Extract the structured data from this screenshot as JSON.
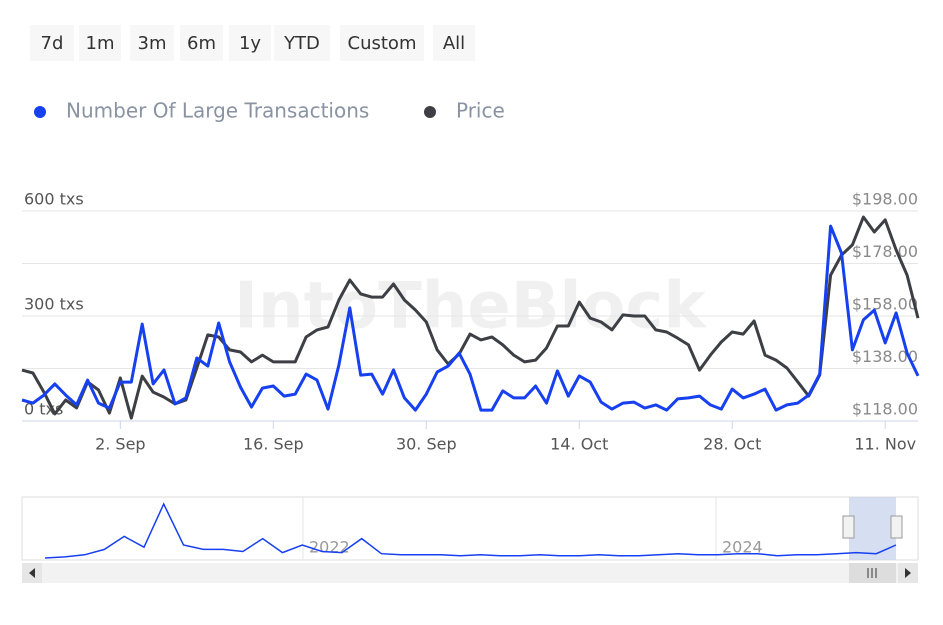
{
  "range_buttons": [
    "7d",
    "1m",
    "3m",
    "6m",
    "1y",
    "YTD",
    "Custom",
    "All"
  ],
  "chart_data": {
    "type": "line",
    "watermark": "IntoTheBlock",
    "categories": [
      null,
      null,
      null,
      null,
      null,
      null,
      null,
      null,
      null,
      "2. Sep",
      null,
      null,
      null,
      null,
      null,
      null,
      null,
      null,
      null,
      null,
      null,
      null,
      null,
      "16. Sep",
      null,
      null,
      null,
      null,
      null,
      null,
      null,
      null,
      null,
      null,
      null,
      null,
      null,
      "30. Sep",
      null,
      null,
      null,
      null,
      null,
      null,
      null,
      null,
      null,
      null,
      null,
      null,
      null,
      "14. Oct",
      null,
      null,
      null,
      null,
      null,
      null,
      null,
      null,
      null,
      null,
      null,
      null,
      null,
      "28. Oct",
      null,
      null,
      null,
      null,
      null,
      null,
      null,
      null,
      null,
      null,
      null,
      null,
      null,
      "11. Nov",
      null,
      null,
      null
    ],
    "series": [
      {
        "name": "Number Of Large Transactions",
        "color": "#1640f0",
        "values": [
          60,
          51,
          74,
          106,
          74,
          46,
          117,
          51,
          37,
          111,
          111,
          277,
          106,
          146,
          49,
          66,
          180,
          157,
          280,
          169,
          97,
          40,
          94,
          100,
          71,
          77,
          134,
          117,
          34,
          160,
          323,
          131,
          134,
          77,
          146,
          66,
          31,
          77,
          140,
          157,
          194,
          134,
          31,
          31,
          86,
          66,
          66,
          100,
          51,
          143,
          71,
          129,
          111,
          54,
          34,
          51,
          54,
          37,
          46,
          31,
          63,
          66,
          71,
          46,
          34,
          91,
          66,
          77,
          91,
          31,
          46,
          51,
          74,
          134,
          557,
          480,
          203,
          289,
          317,
          223,
          309,
          194,
          129
        ]
      },
      {
        "name": "Price",
        "color": "#3d3f44",
        "axis": "y2",
        "values": [
          137.4,
          136.3,
          129.0,
          120.7,
          126.0,
          123.0,
          132.9,
          129.8,
          121.0,
          134.4,
          119.1,
          135.1,
          129.0,
          127.1,
          124.5,
          126.0,
          138.2,
          150.8,
          150.0,
          145.1,
          144.3,
          140.5,
          143.1,
          140.5,
          140.5,
          140.5,
          150.0,
          152.7,
          153.8,
          164.1,
          171.7,
          166.4,
          165.2,
          165.2,
          170.2,
          164.1,
          160.3,
          155.7,
          145.1,
          139.7,
          143.5,
          151.1,
          148.9,
          150.0,
          147.0,
          143.1,
          140.5,
          141.2,
          145.8,
          154.2,
          154.2,
          163.3,
          157.2,
          155.7,
          152.7,
          158.4,
          158.0,
          158.0,
          152.7,
          151.9,
          149.6,
          147.0,
          137.4,
          143.1,
          148.1,
          151.9,
          151.1,
          156.1,
          143.1,
          141.2,
          138.2,
          132.9,
          127.5,
          135.5,
          173.6,
          181.2,
          185.1,
          195.7,
          190.0,
          194.6,
          183.2,
          173.6,
          157.2
        ]
      }
    ],
    "ylim": [
      0,
      600
    ],
    "yticks": [
      {
        "value": 0,
        "label": "0 txs"
      },
      {
        "value": 300,
        "label": "300 txs"
      },
      {
        "value": 600,
        "label": "600 txs"
      }
    ],
    "y2lim": [
      118,
      198
    ],
    "y2ticks": [
      {
        "value": 118,
        "label": "$118.00"
      },
      {
        "value": 138,
        "label": "$138.00"
      },
      {
        "value": 158,
        "label": "$158.00"
      },
      {
        "value": 178,
        "label": "$178.00"
      },
      {
        "value": 198,
        "label": "$198.00"
      }
    ],
    "grid": true
  },
  "navigator": {
    "labels": [
      "2022",
      "2024"
    ],
    "values": [
      0,
      1,
      3,
      8,
      20,
      10,
      50,
      12,
      8,
      8,
      6,
      18,
      5,
      12,
      6,
      5,
      18,
      4,
      3,
      3,
      3,
      2,
      3,
      2,
      2,
      3,
      2,
      2,
      3,
      2,
      2,
      3,
      4,
      3,
      3,
      4,
      4,
      2,
      3,
      3,
      4,
      5,
      4,
      12
    ]
  }
}
